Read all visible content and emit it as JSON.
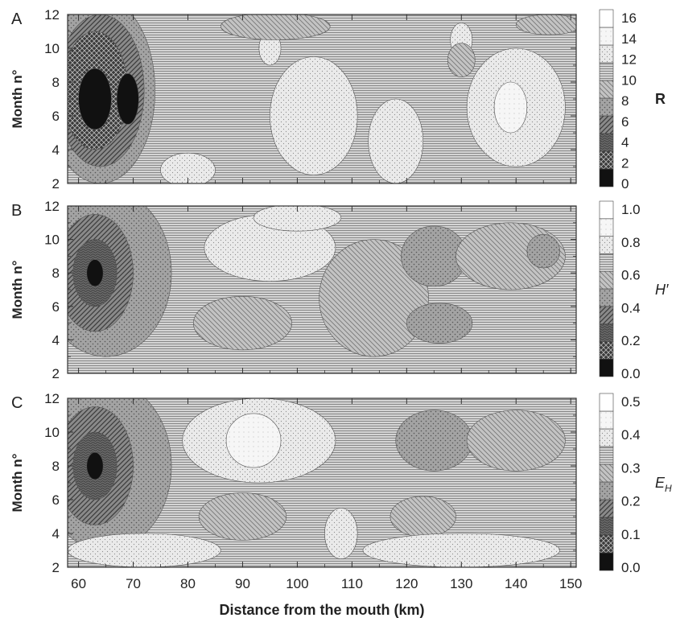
{
  "figure": {
    "xlabel": "Distance from the mouth (km)",
    "ylabel": "Month n°"
  },
  "chart_data": [
    {
      "panel": "A",
      "type": "heatmap",
      "colorbar_label": "R",
      "colorbar_ticks": [
        "0",
        "2",
        "4",
        "6",
        "8",
        "10",
        "12",
        "14",
        "16"
      ],
      "xlim": [
        58,
        151
      ],
      "ylim": [
        2,
        12
      ],
      "x_ticks": [
        "60",
        "70",
        "80",
        "90",
        "100",
        "110",
        "120",
        "130",
        "140",
        "150"
      ],
      "y_ticks": [
        "2",
        "4",
        "6",
        "8",
        "10",
        "12"
      ],
      "z_range": [
        0,
        16
      ],
      "background_level": 10,
      "blobs": [
        {
          "x": 64,
          "y": 7.5,
          "rx": 10,
          "ry": 5.5,
          "v": 7
        },
        {
          "x": 64,
          "y": 7.5,
          "rx": 8,
          "ry": 4.5,
          "v": 5
        },
        {
          "x": 63,
          "y": 7.5,
          "rx": 6,
          "ry": 3.5,
          "v": 3
        },
        {
          "x": 63,
          "y": 7,
          "rx": 3,
          "ry": 1.8,
          "v": 1.2
        },
        {
          "x": 69,
          "y": 7,
          "rx": 2,
          "ry": 1.5,
          "v": 1.2
        },
        {
          "x": 103,
          "y": 6,
          "rx": 8,
          "ry": 3.5,
          "v": 12
        },
        {
          "x": 118,
          "y": 4.5,
          "rx": 5,
          "ry": 2.5,
          "v": 12
        },
        {
          "x": 140,
          "y": 6.5,
          "rx": 9,
          "ry": 3.5,
          "v": 12
        },
        {
          "x": 139,
          "y": 6.5,
          "rx": 3,
          "ry": 1.5,
          "v": 14
        },
        {
          "x": 80,
          "y": 2.8,
          "rx": 5,
          "ry": 1,
          "v": 12
        },
        {
          "x": 95,
          "y": 10,
          "rx": 2,
          "ry": 1,
          "v": 12
        },
        {
          "x": 130,
          "y": 10.5,
          "rx": 2,
          "ry": 1,
          "v": 12
        },
        {
          "x": 96,
          "y": 11.3,
          "rx": 10,
          "ry": 0.8,
          "v": 8.5
        },
        {
          "x": 146,
          "y": 11.4,
          "rx": 6,
          "ry": 0.6,
          "v": 8.5
        },
        {
          "x": 130,
          "y": 9.3,
          "rx": 2.5,
          "ry": 1,
          "v": 8.5
        }
      ]
    },
    {
      "panel": "B",
      "type": "heatmap",
      "colorbar_label": "H′",
      "colorbar_ticks": [
        "0.0",
        "0.2",
        "0.4",
        "0.6",
        "0.8",
        "1.0"
      ],
      "xlim": [
        58,
        151
      ],
      "ylim": [
        2,
        12
      ],
      "x_ticks": [
        "60",
        "70",
        "80",
        "90",
        "100",
        "110",
        "120",
        "130",
        "140",
        "150"
      ],
      "y_ticks": [
        "2",
        "4",
        "6",
        "8",
        "10",
        "12"
      ],
      "z_range": [
        0,
        1.1
      ],
      "background_level": 0.7,
      "blobs": [
        {
          "x": 65,
          "y": 8,
          "rx": 12,
          "ry": 5,
          "v": 0.48
        },
        {
          "x": 63,
          "y": 8,
          "rx": 7,
          "ry": 3.5,
          "v": 0.38
        },
        {
          "x": 63,
          "y": 8,
          "rx": 4,
          "ry": 2,
          "v": 0.28
        },
        {
          "x": 63,
          "y": 8,
          "rx": 1.5,
          "ry": 0.8,
          "v": 0.1
        },
        {
          "x": 95,
          "y": 9.5,
          "rx": 12,
          "ry": 2,
          "v": 0.85
        },
        {
          "x": 90,
          "y": 5,
          "rx": 9,
          "ry": 1.6,
          "v": 0.58
        },
        {
          "x": 114,
          "y": 6.5,
          "rx": 10,
          "ry": 3.5,
          "v": 0.6
        },
        {
          "x": 125,
          "y": 9,
          "rx": 6,
          "ry": 1.8,
          "v": 0.45
        },
        {
          "x": 139,
          "y": 9,
          "rx": 10,
          "ry": 2,
          "v": 0.55
        },
        {
          "x": 126,
          "y": 5,
          "rx": 6,
          "ry": 1.2,
          "v": 0.45
        },
        {
          "x": 145,
          "y": 9.3,
          "rx": 3,
          "ry": 1,
          "v": 0.45
        },
        {
          "x": 100,
          "y": 11.3,
          "rx": 8,
          "ry": 0.8,
          "v": 0.82
        }
      ]
    },
    {
      "panel": "C",
      "type": "heatmap",
      "colorbar_label": "EH",
      "colorbar_ticks": [
        "0.0",
        "0.1",
        "0.2",
        "0.3",
        "0.4",
        "0.5"
      ],
      "xlim": [
        58,
        151
      ],
      "ylim": [
        2,
        12
      ],
      "x_ticks": [
        "60",
        "70",
        "80",
        "90",
        "100",
        "110",
        "120",
        "130",
        "140",
        "150"
      ],
      "y_ticks": [
        "2",
        "4",
        "6",
        "8",
        "10",
        "12"
      ],
      "z_range": [
        0,
        0.55
      ],
      "background_level": 0.35,
      "blobs": [
        {
          "x": 65,
          "y": 8,
          "rx": 12,
          "ry": 5,
          "v": 0.24
        },
        {
          "x": 63,
          "y": 8,
          "rx": 7,
          "ry": 3.5,
          "v": 0.19
        },
        {
          "x": 63,
          "y": 8,
          "rx": 4,
          "ry": 2,
          "v": 0.14
        },
        {
          "x": 63,
          "y": 8,
          "rx": 1.5,
          "ry": 0.8,
          "v": 0.05
        },
        {
          "x": 93,
          "y": 9.5,
          "rx": 14,
          "ry": 2.5,
          "v": 0.43
        },
        {
          "x": 92,
          "y": 9.5,
          "rx": 5,
          "ry": 1.6,
          "v": 0.48
        },
        {
          "x": 90,
          "y": 5,
          "rx": 8,
          "ry": 1.4,
          "v": 0.3
        },
        {
          "x": 125,
          "y": 9.5,
          "rx": 7,
          "ry": 1.8,
          "v": 0.24
        },
        {
          "x": 140,
          "y": 9.5,
          "rx": 9,
          "ry": 1.8,
          "v": 0.28
        },
        {
          "x": 123,
          "y": 5,
          "rx": 6,
          "ry": 1.2,
          "v": 0.28
        },
        {
          "x": 130,
          "y": 3,
          "rx": 18,
          "ry": 1,
          "v": 0.43
        },
        {
          "x": 72,
          "y": 3,
          "rx": 14,
          "ry": 1,
          "v": 0.43
        },
        {
          "x": 108,
          "y": 4,
          "rx": 3,
          "ry": 1.5,
          "v": 0.43
        }
      ]
    }
  ]
}
